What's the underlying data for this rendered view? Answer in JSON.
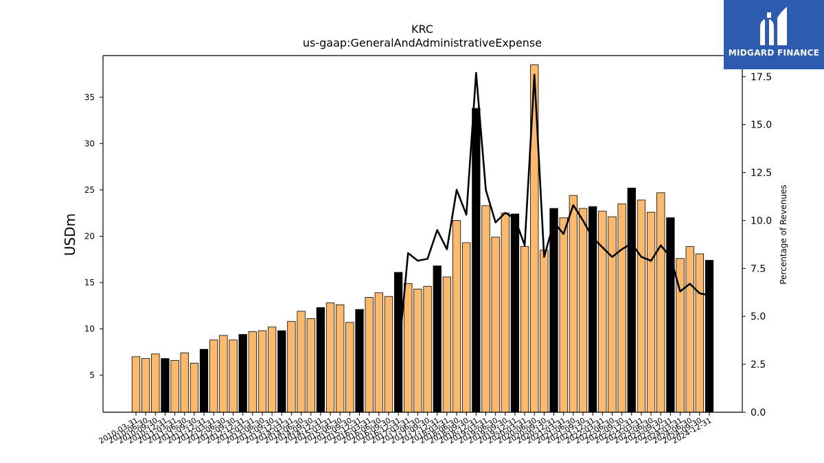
{
  "chart_data": {
    "type": "bar",
    "title": "KRC",
    "subtitle": "us-gaap:GeneralAndAdministrativeExpense",
    "ylabel": "USDm",
    "y2label": "Percentage of Revenues",
    "ylim": [
      1,
      39.5
    ],
    "y2lim": [
      0,
      18.6
    ],
    "yticks": [
      5,
      10,
      15,
      20,
      25,
      30,
      35
    ],
    "y2ticks": [
      "0.0",
      "2.5",
      "5.0",
      "7.5",
      "10.0",
      "12.5",
      "15.0",
      "17.5"
    ],
    "colors": {
      "quarterly": "#fdb96b",
      "annual": "#000000",
      "line": "#000000"
    },
    "categories": [
      "2010-03-31",
      "2010-06-30",
      "2010-09-30",
      "2010-12-31",
      "2011-03-31",
      "2011-06-30",
      "2011-09-30",
      "2011-12-31",
      "2012-03-31",
      "2012-06-30",
      "2012-09-30",
      "2012-12-31",
      "2013-03-31",
      "2013-06-30",
      "2013-09-30",
      "2013-12-31",
      "2014-03-31",
      "2014-06-30",
      "2014-09-30",
      "2014-12-31",
      "2015-03-31",
      "2015-06-30",
      "2015-09-30",
      "2015-12-31",
      "2016-03-31",
      "2016-06-30",
      "2016-09-30",
      "2016-12-31",
      "2017-03-31",
      "2017-06-30",
      "2017-09-30",
      "2017-12-31",
      "2018-03-31",
      "2018-06-30",
      "2018-09-30",
      "2018-12-31",
      "2019-03-31",
      "2019-06-30",
      "2019-09-30",
      "2019-12-31",
      "2020-03-31",
      "2020-06-30",
      "2020-09-30",
      "2020-12-31",
      "2021-03-31",
      "2021-06-30",
      "2021-09-30",
      "2021-12-31",
      "2022-03-31",
      "2022-06-30",
      "2022-09-30",
      "2022-12-31",
      "2023-03-31",
      "2023-06-30",
      "2023-09-30",
      "2023-12-31",
      "2024-03-31",
      "2024-06-30",
      "2024-09-30",
      "2024-12-31"
    ],
    "series": [
      {
        "values": [
          7.0,
          6.8,
          7.3,
          6.8,
          6.6,
          7.4,
          6.3,
          7.8,
          8.8,
          9.3,
          8.8,
          9.4,
          9.7,
          9.8,
          10.2,
          9.8,
          10.8,
          11.9,
          11.1,
          12.3,
          12.8,
          12.6,
          10.7,
          12.1,
          13.4,
          13.9,
          13.5,
          16.1,
          14.9,
          14.3,
          14.6,
          16.8,
          15.6,
          21.7,
          19.3,
          33.8,
          23.3,
          19.9,
          22.5,
          22.4,
          18.9,
          38.5,
          18.5,
          23.0,
          22.0,
          24.4,
          23.0,
          23.2,
          22.7,
          22.1,
          23.5,
          25.2,
          23.9,
          22.6,
          24.7,
          22.0,
          17.6,
          18.9,
          18.1,
          17.4
        ]
      },
      {
        "values": [
          null,
          null,
          null,
          null,
          null,
          null,
          null,
          null,
          null,
          null,
          null,
          null,
          null,
          null,
          null,
          null,
          null,
          null,
          null,
          null,
          null,
          null,
          null,
          null,
          null,
          null,
          null,
          2.9,
          8.3,
          7.9,
          8.0,
          9.5,
          8.5,
          11.6,
          10.3,
          17.7,
          11.6,
          9.9,
          10.4,
          10.1,
          8.7,
          17.6,
          8.1,
          9.9,
          9.3,
          10.8,
          10.0,
          9.1,
          8.6,
          8.1,
          8.5,
          8.8,
          8.1,
          7.9,
          8.7,
          8.1,
          6.3,
          6.7,
          6.2,
          6.1
        ]
      }
    ]
  },
  "logo": {
    "name": "MIDGARD FINANCE"
  }
}
